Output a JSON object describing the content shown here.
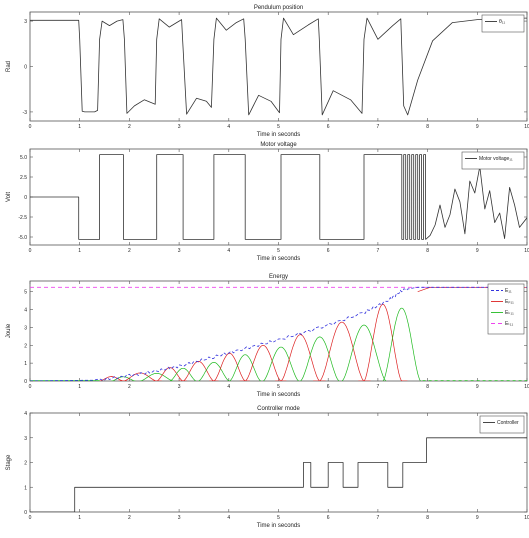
{
  "chart_data": [
    {
      "type": "line",
      "title": "Pendulum position",
      "xlabel": "Time in seconds",
      "ylabel": "Rad",
      "xlim": [
        0,
        10
      ],
      "ylim": [
        -3.6,
        3.6
      ],
      "xticks": [
        0,
        1,
        2,
        3,
        4,
        5,
        6,
        7,
        8,
        9,
        10
      ],
      "yticks": [
        {
          "v": 3,
          "label": "3"
        },
        {
          "v": 0,
          "label": "0"
        },
        {
          "v": -3,
          "label": "-3"
        }
      ],
      "legend": {
        "position": "top-right",
        "entries": [
          {
            "label": "θ₁₁",
            "color": "#333333",
            "dash": ""
          }
        ]
      },
      "series": [
        {
          "name": "θ₁₁",
          "color": "#333333",
          "x": [
            0,
            0.98,
            1.0,
            1.05,
            1.1,
            1.3,
            1.36,
            1.4,
            1.45,
            1.6,
            1.75,
            1.87,
            1.9,
            1.95,
            2.1,
            2.3,
            2.52,
            2.55,
            2.6,
            2.8,
            2.95,
            3.05,
            3.07,
            3.15,
            3.35,
            3.55,
            3.65,
            3.7,
            3.75,
            3.95,
            4.15,
            4.3,
            4.33,
            4.4,
            4.6,
            4.85,
            5.02,
            5.05,
            5.1,
            5.3,
            5.6,
            5.8,
            5.82,
            5.88,
            6.1,
            6.45,
            6.68,
            6.72,
            6.78,
            7.0,
            7.3,
            7.46,
            7.52,
            7.6,
            7.8,
            8.1,
            8.5,
            9.0,
            9.5,
            10
          ],
          "y": [
            3.05,
            3.05,
            1.8,
            -2.95,
            -3.0,
            -3.0,
            -2.9,
            1.8,
            3.0,
            2.7,
            3.0,
            3.1,
            1.8,
            -3.1,
            -2.6,
            -2.2,
            -2.5,
            1.8,
            3.15,
            2.6,
            2.9,
            3.1,
            1.8,
            -3.15,
            -2.1,
            -2.3,
            -2.7,
            1.8,
            3.2,
            2.4,
            2.9,
            3.15,
            1.8,
            -3.2,
            -1.9,
            -2.3,
            -3.05,
            1.8,
            3.2,
            2.1,
            2.75,
            3.15,
            1.8,
            -3.2,
            -1.6,
            -2.2,
            -3.1,
            1.8,
            3.2,
            1.8,
            2.7,
            3.15,
            -2.6,
            -3.2,
            -0.9,
            1.7,
            2.9,
            3.1,
            3.2,
            3.2
          ]
        }
      ]
    },
    {
      "type": "line",
      "title": "Motor voltage",
      "xlabel": "Time in seconds",
      "ylabel": "Volt",
      "xlim": [
        0,
        10
      ],
      "ylim": [
        -6,
        6
      ],
      "xticks": [
        0,
        1,
        2,
        3,
        4,
        5,
        6,
        7,
        8,
        9,
        10
      ],
      "yticks": [
        {
          "v": 5.0,
          "label": "5.0"
        },
        {
          "v": 2.5,
          "label": "2.5"
        },
        {
          "v": 0,
          "label": "0"
        },
        {
          "v": -2.5,
          "label": "-2.5"
        },
        {
          "v": -5.0,
          "label": "-5.0"
        }
      ],
      "legend": {
        "position": "top-right",
        "entries": [
          {
            "label": "Motor voltage₁₁",
            "color": "#333333",
            "dash": ""
          }
        ]
      },
      "series": [
        {
          "name": "Motor voltage₁₁",
          "color": "#333333",
          "x": [
            0,
            0.98,
            0.98,
            1.4,
            1.4,
            1.88,
            1.88,
            2.55,
            2.55,
            3.08,
            3.08,
            3.7,
            3.7,
            4.33,
            4.33,
            5.05,
            5.05,
            5.83,
            5.83,
            6.72,
            6.72,
            7.48,
            7.48,
            7.52,
            7.52,
            7.56,
            7.56,
            7.6,
            7.6,
            7.64,
            7.64,
            7.68,
            7.68,
            7.72,
            7.72,
            7.76,
            7.76,
            7.8,
            7.8,
            7.84,
            7.84,
            7.88,
            7.88,
            7.92,
            7.92,
            7.96,
            7.96,
            8.05,
            8.15,
            8.25,
            8.35,
            8.45,
            8.55,
            8.65,
            8.75,
            8.85,
            8.95,
            9.05,
            9.15,
            9.25,
            9.35,
            9.45,
            9.55,
            9.65,
            9.75,
            9.85,
            10
          ],
          "y": [
            0,
            0,
            -5.3,
            -5.3,
            5.3,
            5.3,
            -5.3,
            -5.3,
            5.3,
            5.3,
            -5.3,
            -5.3,
            5.3,
            5.3,
            -5.3,
            -5.3,
            5.3,
            5.3,
            -5.3,
            -5.3,
            5.3,
            5.3,
            -5.3,
            -5.3,
            5.3,
            5.3,
            -5.3,
            -5.3,
            5.3,
            5.3,
            -5.3,
            -5.3,
            5.3,
            5.3,
            -5.3,
            -5.3,
            5.3,
            5.3,
            -5.3,
            -5.3,
            5.3,
            5.3,
            -5.3,
            -5.3,
            5.3,
            5.3,
            -5.3,
            -4.8,
            -3.5,
            -1.0,
            -3.8,
            -2.2,
            1.0,
            -0.6,
            -4.6,
            2.0,
            0.5,
            3.8,
            -1.5,
            0.8,
            -3.2,
            -2.0,
            -5.2,
            1.2,
            -1.0,
            -3.8,
            -2.6
          ]
        }
      ]
    },
    {
      "type": "line",
      "title": "Energy",
      "xlabel": "Time in seconds",
      "ylabel": "Joule",
      "xlim": [
        0,
        10
      ],
      "ylim": [
        0,
        5.6
      ],
      "xticks": [
        0,
        1,
        2,
        3,
        4,
        5,
        6,
        7,
        8,
        9,
        10
      ],
      "yticks": [
        {
          "v": 0,
          "label": "0"
        },
        {
          "v": 1,
          "label": "1"
        },
        {
          "v": 2,
          "label": "2"
        },
        {
          "v": 3,
          "label": "3"
        },
        {
          "v": 4,
          "label": "4"
        },
        {
          "v": 5,
          "label": "5"
        }
      ],
      "legend": {
        "position": "top-right",
        "entries": [
          {
            "label": "E₁₁",
            "color": "#3333dd",
            "dash": "3,2"
          },
          {
            "label": "Eₚ₁₁",
            "color": "#dd2222",
            "dash": ""
          },
          {
            "label": "Eₖ₁₁",
            "color": "#22bb22",
            "dash": ""
          },
          {
            "label": "Eₜ₁₁",
            "color": "#ee44ee",
            "dash": "4,3"
          }
        ]
      },
      "target": 5.25,
      "swing_cycles": [
        {
          "t0": 1.4,
          "t1": 1.88,
          "emax": 0.25
        },
        {
          "t0": 1.88,
          "t1": 2.55,
          "emax": 0.45
        },
        {
          "t0": 2.55,
          "t1": 3.08,
          "emax": 0.75
        },
        {
          "t0": 3.08,
          "t1": 3.7,
          "emax": 1.1
        },
        {
          "t0": 3.7,
          "t1": 4.33,
          "emax": 1.55
        },
        {
          "t0": 4.33,
          "t1": 5.05,
          "emax": 2.0
        },
        {
          "t0": 5.05,
          "t1": 5.83,
          "emax": 2.6
        },
        {
          "t0": 5.83,
          "t1": 6.72,
          "emax": 3.3
        },
        {
          "t0": 6.72,
          "t1": 7.48,
          "emax": 4.3
        }
      ],
      "total": {
        "x": [
          0,
          1.4,
          2.0,
          2.55,
          3.1,
          3.7,
          4.3,
          5.0,
          5.8,
          6.7,
          7.2,
          7.5,
          7.8,
          10
        ],
        "y": [
          0,
          0.05,
          0.3,
          0.55,
          0.9,
          1.35,
          1.8,
          2.3,
          2.95,
          3.8,
          4.5,
          5.1,
          5.25,
          5.25
        ]
      }
    },
    {
      "type": "line",
      "title": "Controller mode",
      "xlabel": "Time in seconds",
      "ylabel": "Stage",
      "xlim": [
        0,
        10
      ],
      "ylim": [
        0,
        4
      ],
      "xticks": [
        0,
        1,
        2,
        3,
        4,
        5,
        6,
        7,
        8,
        9,
        10
      ],
      "yticks": [
        {
          "v": 0,
          "label": "0"
        },
        {
          "v": 1,
          "label": "1"
        },
        {
          "v": 2,
          "label": "2"
        },
        {
          "v": 3,
          "label": "3"
        },
        {
          "v": 4,
          "label": "4"
        }
      ],
      "legend": {
        "position": "top-right",
        "entries": [
          {
            "label": "Controller",
            "color": "#333333",
            "dash": ""
          }
        ]
      },
      "series": [
        {
          "name": "Controller",
          "color": "#333333",
          "x": [
            0,
            0.9,
            0.9,
            5.5,
            5.5,
            5.65,
            5.65,
            6.0,
            6.0,
            6.3,
            6.3,
            6.6,
            6.6,
            7.2,
            7.2,
            7.5,
            7.5,
            7.98,
            7.98,
            10
          ],
          "y": [
            0,
            0,
            1,
            1,
            2,
            2,
            1,
            1,
            2,
            2,
            1,
            1,
            2,
            2,
            1,
            1,
            2,
            2,
            3,
            3
          ]
        }
      ]
    }
  ]
}
